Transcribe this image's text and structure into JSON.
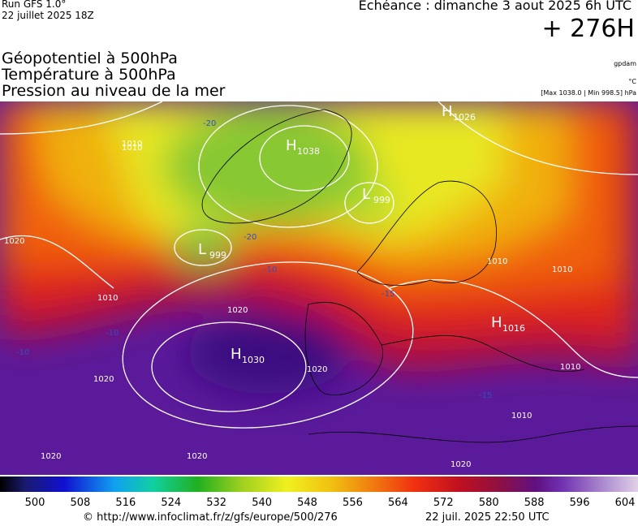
{
  "header": {
    "run": "Run GFS 1.0°",
    "run_date": "22 juillet 2025 18Z",
    "valid": "Echéance : dimanche 3 aout 2025 6h UTC",
    "lead": "+ 276H",
    "titles": [
      "Géopotentiel à 500hPa",
      "Température à 500hPa",
      "Pression au niveau de la mer"
    ],
    "units": [
      "gpdam",
      "°C",
      "[Max 1038.0 | Min 998.5] hPa"
    ]
  },
  "pressure_centers": [
    {
      "letter": "H",
      "value": "1038"
    },
    {
      "letter": "H",
      "value": "1026"
    },
    {
      "letter": "L",
      "value": "999"
    },
    {
      "letter": "L",
      "value": "999"
    },
    {
      "letter": "H",
      "value": "1030"
    },
    {
      "letter": "H",
      "value": "1016"
    }
  ],
  "isobar_labels": [
    "1010",
    "1020",
    "1020",
    "1020",
    "1010",
    "1010",
    "1020",
    "1020",
    "1010",
    "1010",
    "1010",
    "1020",
    "1020",
    "1010"
  ],
  "temperature_labels": [
    "-20",
    "-20",
    "-15",
    "-10",
    "-10",
    "-10",
    "-15"
  ],
  "colorbar": {
    "ticks": [
      500,
      508,
      516,
      524,
      532,
      540,
      548,
      556,
      564,
      572,
      580,
      588,
      596,
      604
    ]
  },
  "footer": {
    "source": "© http://www.infoclimat.fr/z/gfs/europe/500/276",
    "generated": "22 juil. 2025 22:50 UTC"
  }
}
